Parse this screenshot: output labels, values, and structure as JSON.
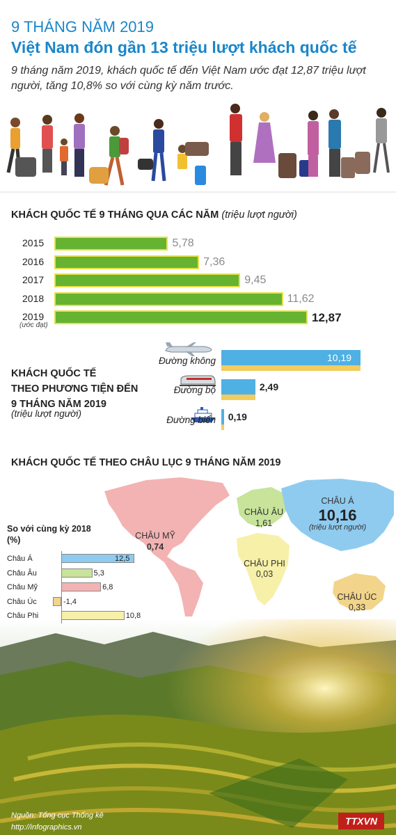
{
  "header": {
    "line1": "9 THÁNG NĂM 2019",
    "line2": "Việt Nam đón gần 13 triệu lượt khách quốc tế",
    "desc": "9 tháng năm 2019, khách quốc tế đến Việt Nam ước đạt 12,87 triệu lượt người, tăng 10,8% so với cùng kỳ năm trước."
  },
  "yearly": {
    "title": "KHÁCH QUỐC TẾ 9 THÁNG QUA CÁC NĂM",
    "unit": "(triệu lượt người)",
    "estimate_note": "(ước đạt)"
  },
  "transport": {
    "title_lines": [
      "KHÁCH QUỐC TẾ",
      "THEO PHƯƠNG TIỆN ĐẾN",
      "9 THÁNG NĂM 2019"
    ],
    "unit": "(triệu lượt người)"
  },
  "continents": {
    "title": "KHÁCH QUỐC TẾ THEO CHÂU LỤC 9 THÁNG NĂM 2019",
    "unit": "(triệu lượt người)"
  },
  "growth": {
    "title": "So với cùng kỳ 2018",
    "unit": "(%)"
  },
  "footer": {
    "source": "Nguồn: Tổng cục Thống kê",
    "url": "http://infographics.vn",
    "logo_text": "TTXVN"
  },
  "colors": {
    "accent": "#1a86c9",
    "bar_green": "#66b332",
    "bar_border": "#e6e04a",
    "transport_blue": "#4fb0e3",
    "transport_yellow": "#f2cc5e",
    "asia": "#8fcbef",
    "europe": "#c7e49a",
    "americas": "#f3b3b3",
    "oceania": "#f2d48a",
    "africa": "#f7f0a8"
  },
  "chart_data": [
    {
      "type": "bar",
      "title": "KHÁCH QUỐC TẾ 9 THÁNG QUA CÁC NĂM",
      "categories": [
        "2015",
        "2016",
        "2017",
        "2018",
        "2019"
      ],
      "values": [
        5.78,
        7.36,
        9.45,
        11.62,
        12.87
      ],
      "labels": [
        "5,78",
        "7,36",
        "9,45",
        "11,62",
        "12,87"
      ],
      "xlim": [
        0,
        12.87
      ]
    },
    {
      "type": "bar",
      "categories": [
        "Đường không",
        "Đường bộ",
        "Đường biển"
      ],
      "values": [
        10.19,
        2.49,
        0.19
      ],
      "labels": [
        "10,19",
        "2,49",
        "0,19"
      ],
      "xlim": [
        0,
        10.19
      ]
    },
    {
      "type": "bar",
      "title": "KHÁCH QUỐC TẾ THEO CHÂU LỤC 9 THÁNG NĂM 2019",
      "categories": [
        "CHÂU Á",
        "CHÂU ÂU",
        "CHÂU MỸ",
        "CHÂU PHI",
        "CHÂU ÚC"
      ],
      "values": [
        10.16,
        1.61,
        0.74,
        0.03,
        0.33
      ],
      "labels": [
        "10,16",
        "1,61",
        "0,74",
        "0,03",
        "0,33"
      ]
    },
    {
      "type": "bar",
      "title": "So với cùng kỳ 2018",
      "categories": [
        "Châu Á",
        "Châu Âu",
        "Châu Mỹ",
        "Châu Úc",
        "Châu Phi"
      ],
      "values": [
        12.5,
        5.3,
        6.8,
        -1.4,
        10.8
      ],
      "labels": [
        "12,5",
        "5,3",
        "6,8",
        "-1,4",
        "10,8"
      ],
      "colors": [
        "#8fcbef",
        "#c7e49a",
        "#f3b3b3",
        "#f2d48a",
        "#f7f0a8"
      ],
      "xlim": [
        -1.4,
        12.5
      ]
    }
  ]
}
